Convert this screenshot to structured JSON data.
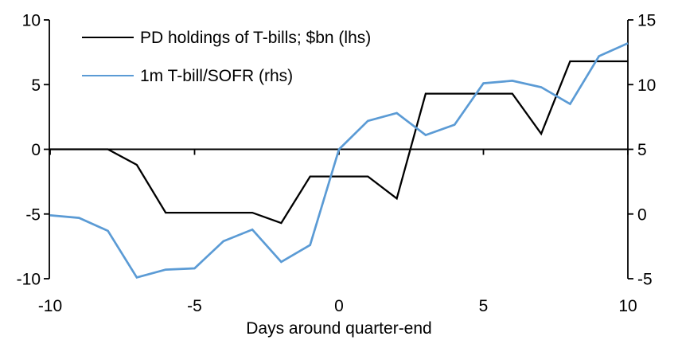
{
  "chart_data": {
    "type": "line",
    "x": [
      -10,
      -9,
      -8,
      -7,
      -6,
      -5,
      -4,
      -3,
      -2,
      -1,
      0,
      1,
      2,
      3,
      4,
      5,
      6,
      7,
      8,
      9,
      10
    ],
    "series": [
      {
        "name": "PD holdings of T-bills; $bn (lhs)",
        "axis": "left",
        "color": "#000000",
        "values": [
          0,
          0,
          0,
          -1.2,
          -4.9,
          -4.9,
          -4.9,
          -4.9,
          -5.7,
          -2.1,
          -2.1,
          -2.1,
          -3.8,
          4.3,
          4.3,
          4.3,
          4.3,
          1.2,
          6.8,
          6.8,
          6.8
        ]
      },
      {
        "name": "1m T-bill/SOFR (rhs)",
        "axis": "right",
        "color": "#5B9BD5",
        "values": [
          -0.1,
          -0.3,
          -1.3,
          -4.9,
          -4.3,
          -4.2,
          -2.1,
          -1.2,
          -3.7,
          -2.4,
          5.0,
          7.2,
          7.8,
          6.1,
          6.9,
          10.1,
          10.3,
          9.8,
          8.5,
          12.2,
          13.2
        ]
      }
    ],
    "x_axis": {
      "label": "Days around quarter-end",
      "min": -10,
      "max": 10,
      "ticks": [
        -10,
        -5,
        0,
        5,
        10
      ]
    },
    "left_axis": {
      "min": -10,
      "max": 10,
      "ticks": [
        10,
        5,
        0,
        -5,
        -10
      ]
    },
    "right_axis": {
      "min": -5,
      "max": 15,
      "ticks": [
        15,
        10,
        5,
        0,
        -5
      ]
    },
    "title": "",
    "grid": "off",
    "legend_position": "top-left-inside",
    "zero_line": true
  }
}
